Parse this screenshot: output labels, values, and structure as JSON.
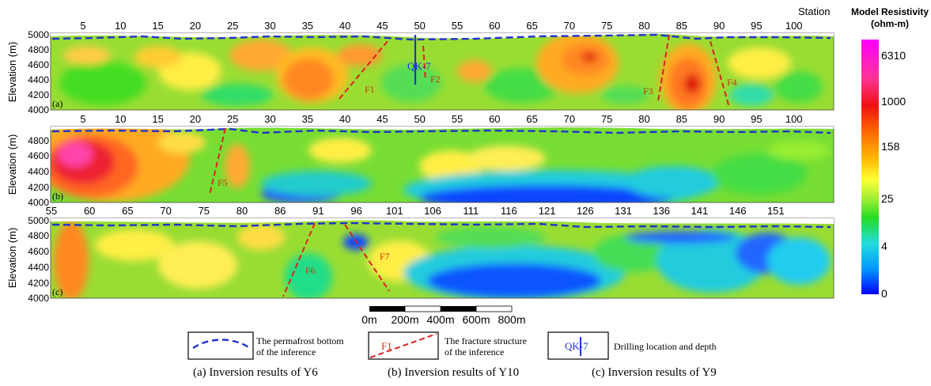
{
  "panels": [
    {
      "id": "a",
      "tag": "(a)",
      "station_ticks": [
        "5",
        "10",
        "15",
        "20",
        "25",
        "30",
        "35",
        "40",
        "45",
        "50",
        "55",
        "60",
        "65",
        "70",
        "75",
        "80",
        "85",
        "90",
        "95",
        "100"
      ],
      "station_word": "Station",
      "elevation_ticks": [
        "5000",
        "4800",
        "4600",
        "4400",
        "4200",
        "4000"
      ],
      "faults": [
        "F1",
        "F2",
        "F3",
        "F4"
      ],
      "borehole": "QK-7"
    },
    {
      "id": "b",
      "tag": "(b)",
      "station_ticks": [
        "5",
        "10",
        "15",
        "20",
        "25",
        "30",
        "35",
        "40",
        "45",
        "50",
        "55",
        "60",
        "65",
        "70",
        "75",
        "80",
        "85",
        "90",
        "95",
        "100"
      ],
      "elevation_ticks": [
        "4800",
        "4600",
        "4400",
        "4200",
        "4000"
      ],
      "faults": [
        "F5"
      ]
    },
    {
      "id": "c",
      "tag": "(c)",
      "station_ticks": [
        "55",
        "60",
        "65",
        "70",
        "75",
        "80",
        "86",
        "91",
        "96",
        "101",
        "106",
        "111",
        "116",
        "121",
        "126",
        "131",
        "136",
        "141",
        "146",
        "151"
      ],
      "elevation_ticks": [
        "5000",
        "4800",
        "4600",
        "4400",
        "4200",
        "4000"
      ],
      "faults": [
        "F6",
        "F7"
      ]
    }
  ],
  "y_axis_label": "Elevation (m)",
  "colorbar": {
    "title_line1": "Model Resistivity",
    "title_line2": "(ohm-m)",
    "ticks": [
      "6310",
      "1000",
      "158",
      "25",
      "4",
      "0"
    ]
  },
  "scale_bar": {
    "labels": [
      "0m",
      "200m",
      "400m",
      "600m",
      "800m"
    ]
  },
  "legend": {
    "permafrost": [
      "The permafrost bottom",
      "of the inference"
    ],
    "fracture_sample": "F1",
    "fracture": [
      "The fracture structure",
      "of the inference"
    ],
    "drill_sample": "QK-7",
    "drill": "Drilling location and depth"
  },
  "caption": {
    "a": "(a) Inversion results of Y6",
    "b": "(b) Inversion results of Y10",
    "c": "(c) Inversion results of Y9"
  },
  "colors": {
    "permafrost_line": "#2233cc",
    "fracture_line": "#dd2222",
    "borehole": "#2233cc"
  }
}
